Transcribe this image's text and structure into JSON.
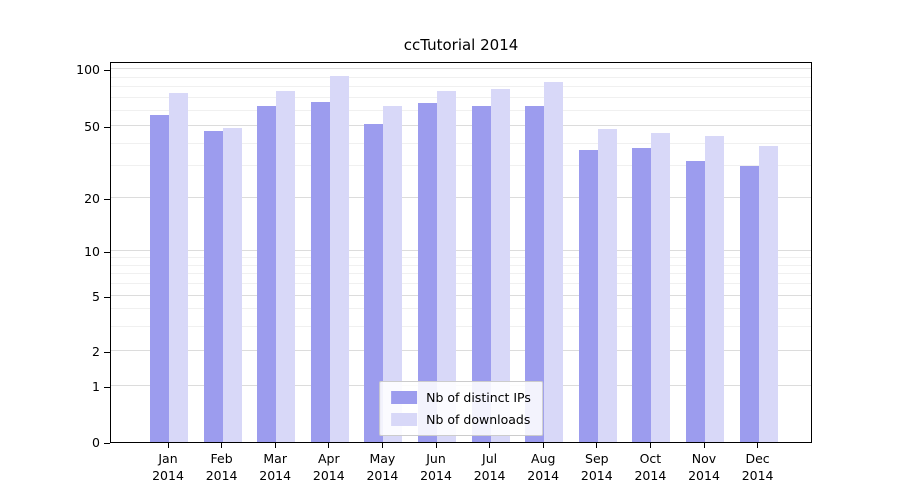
{
  "chart_data": {
    "type": "bar",
    "title": "ccTutorial 2014",
    "categories": [
      "Jan 2014",
      "Feb 2014",
      "Mar 2014",
      "Apr 2014",
      "May 2014",
      "Jun 2014",
      "Jul 2014",
      "Aug 2014",
      "Sep 2014",
      "Oct 2014",
      "Nov 2014",
      "Dec 2014"
    ],
    "series": [
      {
        "name": "Nb of distinct IPs",
        "color": "#9c9cee",
        "values": [
          57,
          47,
          64,
          67,
          51,
          66,
          64,
          64,
          37,
          38,
          32,
          30
        ]
      },
      {
        "name": "Nb of downloads",
        "color": "#d8d8f8",
        "values": [
          75,
          49,
          77,
          92,
          64,
          77,
          78,
          85,
          48,
          46,
          44,
          39
        ]
      }
    ],
    "xlabel": "",
    "ylabel": "",
    "yscale": "symlog",
    "yticks": [
      0,
      1,
      2,
      5,
      10,
      20,
      50,
      100
    ],
    "ylim": [
      0,
      110
    ],
    "grid": true,
    "legend_position": "lower center"
  }
}
